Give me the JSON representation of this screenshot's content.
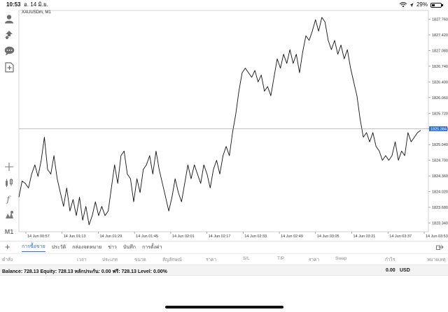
{
  "status_bar": {
    "time": "10:53",
    "date": "อ. 14 มิ.ย.",
    "battery": "29%",
    "battery_level": 0.29,
    "icons": [
      "wifi-icon",
      "location-icon",
      "battery-icon"
    ]
  },
  "toolbar": {
    "items": [
      "account-icon",
      "trade-icon",
      "chat-icon",
      "new-chart-icon",
      "crosshair-icon",
      "indicators-icon",
      "function-icon",
      "objects-icon"
    ],
    "timeframe": "M1"
  },
  "chart": {
    "symbol_label": "XAUUSDm, M1",
    "current_price": "1825.384",
    "colors": {
      "line": "#111111",
      "grid": "#d9d9d9",
      "price_line": "#9a9a9a",
      "price_tag": "#2b6ee4"
    }
  },
  "chart_data": {
    "type": "line",
    "title": "",
    "xlabel": "",
    "ylabel": "",
    "ylim": [
      1823.15,
      1827.95
    ],
    "y_ticks": [
      "1827.760",
      "1827.420",
      "1827.080",
      "1826.740",
      "1826.400",
      "1826.060",
      "1825.720",
      "1825.380",
      "1825.040",
      "1824.700",
      "1824.360",
      "1824.020",
      "1823.680",
      "1823.340"
    ],
    "x_ticks": [
      "14 Jun 00:57",
      "14 Jun 01:13",
      "14 Jun 01:29",
      "14 Jun 01:45",
      "14 Jun 02:01",
      "14 Jun 02:17",
      "14 Jun 02:33",
      "14 Jun 02:49",
      "14 Jun 03:05",
      "14 Jun 03:21",
      "14 Jun 03:37",
      "14 Jun 03:53"
    ],
    "grid": false,
    "series": [
      {
        "values": [
          1823.9,
          1824.25,
          1824.2,
          1824.1,
          1824.4,
          1824.6,
          1824.35,
          1824.7,
          1825.2,
          1824.5,
          1824.4,
          1824.8,
          1824.3,
          1824.0,
          1823.7,
          1824.1,
          1823.6,
          1823.85,
          1823.5,
          1823.9,
          1823.4,
          1823.7,
          1823.3,
          1823.5,
          1823.8,
          1823.5,
          1823.7,
          1823.5,
          1823.6,
          1824.1,
          1824.6,
          1824.2,
          1824.8,
          1824.9,
          1824.4,
          1824.3,
          1823.8,
          1824.3,
          1824.0,
          1824.5,
          1824.6,
          1824.8,
          1824.4,
          1824.9,
          1824.5,
          1824.2,
          1823.9,
          1823.6,
          1823.9,
          1824.3,
          1824.0,
          1823.8,
          1824.2,
          1824.6,
          1824.3,
          1824.6,
          1824.4,
          1824.2,
          1824.6,
          1824.4,
          1824.1,
          1824.5,
          1824.7,
          1824.4,
          1824.8,
          1825.0,
          1824.8,
          1825.3,
          1825.7,
          1826.2,
          1826.6,
          1826.7,
          1826.6,
          1826.5,
          1826.65,
          1826.4,
          1826.55,
          1826.2,
          1826.3,
          1826.1,
          1826.5,
          1826.9,
          1826.7,
          1827.0,
          1826.8,
          1827.1,
          1826.8,
          1827.0,
          1826.6,
          1827.05,
          1827.4,
          1827.3,
          1827.5,
          1827.75,
          1827.5,
          1827.8,
          1827.7,
          1827.3,
          1827.1,
          1827.3,
          1827.0,
          1827.2,
          1826.9,
          1827.1,
          1826.7,
          1826.4,
          1826.1,
          1825.6,
          1825.2,
          1825.3,
          1825.1,
          1825.3,
          1825.0,
          1824.9,
          1824.7,
          1824.8,
          1824.7,
          1824.8,
          1825.1,
          1824.7,
          1824.9,
          1824.8,
          1825.3,
          1825.1,
          1825.2,
          1825.3,
          1825.35
        ]
      }
    ]
  },
  "bottom_tabs": {
    "items": [
      {
        "label": "การซื้อขาย",
        "active": true
      },
      {
        "label": "ประวัติ",
        "active": false
      },
      {
        "label": "กล่องจดหมาย",
        "active": false
      },
      {
        "label": "ข่าว",
        "active": false
      },
      {
        "label": "บันทึก",
        "active": false
      },
      {
        "label": "การตั้งค่า",
        "active": false
      }
    ]
  },
  "trade_table": {
    "columns": [
      "คำสั่ง",
      "เวลา",
      "ประเภท",
      "ขนาด",
      "สัญลักษณ์",
      "ราคา",
      "S/L",
      "T/P",
      "ราคา",
      "Swap",
      "กำไร",
      "หมายเหตุ"
    ]
  },
  "balance": {
    "text": "Balance: 728.13 Equity: 728.13 หลักประกัน: 0.00 ฟรี: 728.13 Level: 0.00%",
    "profit": "0.00",
    "currency": "USD"
  }
}
